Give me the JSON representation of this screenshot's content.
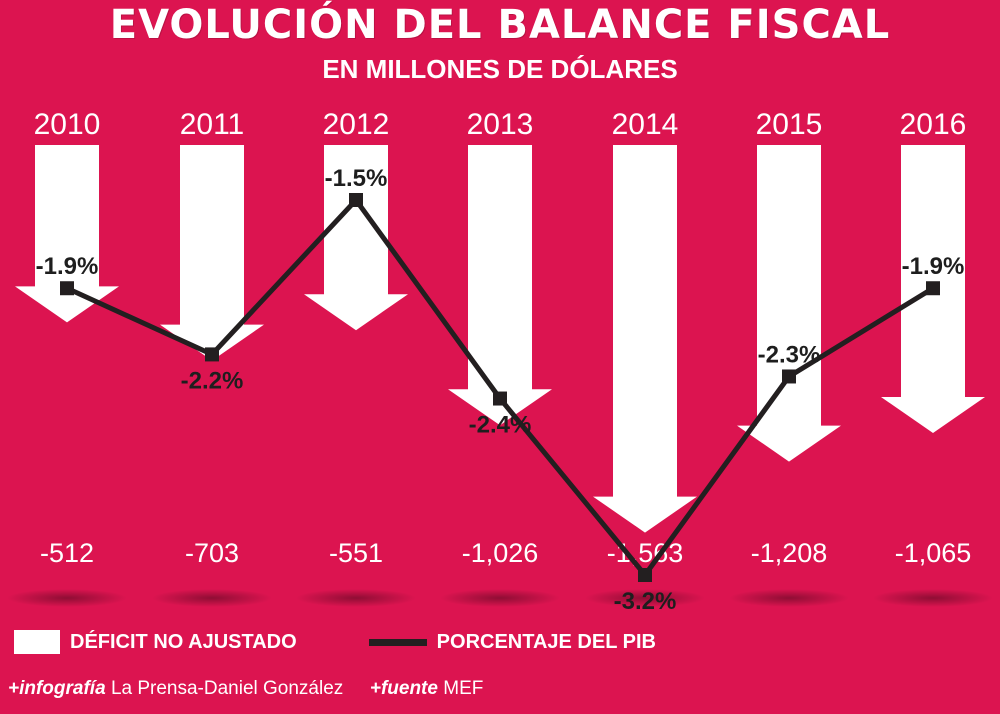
{
  "title": "EVOLUCIÓN DEL BALANCE FISCAL",
  "subtitle": "EN MILLONES DE DÓLARES",
  "legend": {
    "deficit_label": "DÉFICIT NO AJUSTADO",
    "pib_label": "PORCENTAJE DEL PIB"
  },
  "credits": {
    "infografia_label": "+infografía",
    "infografia_value": "La Prensa-Daniel González",
    "fuente_label": "+fuente",
    "fuente_value": "MEF"
  },
  "colors": {
    "background": "#dc1450",
    "arrows": "#ffffff",
    "line": "#231f20"
  },
  "chart_data": {
    "type": "bar",
    "categories": [
      "2010",
      "2011",
      "2012",
      "2013",
      "2014",
      "2015",
      "2016"
    ],
    "series": [
      {
        "name": "DÉFICIT NO AJUSTADO",
        "values": [
          -512,
          -703,
          -551,
          -1026,
          -1563,
          -1208,
          -1065
        ],
        "labels": [
          "-512",
          "-703",
          "-551",
          "-1,026",
          "-1,563",
          "-1,208",
          "-1,065"
        ]
      },
      {
        "name": "PORCENTAJE DEL PIB",
        "values": [
          -1.9,
          -2.2,
          -1.5,
          -2.4,
          -3.2,
          -2.3,
          -1.9
        ],
        "labels": [
          "-1.9%",
          "-2.2%",
          "-1.5%",
          "-2.4%",
          "-3.2%",
          "-2.3%",
          "-1.9%"
        ]
      }
    ],
    "title": "EVOLUCIÓN DEL BALANCE FISCAL",
    "subtitle": "EN MILLONES DE DÓLARES",
    "xlabel": "",
    "ylabel": "",
    "legend_position": "bottom-left",
    "grid": false
  }
}
